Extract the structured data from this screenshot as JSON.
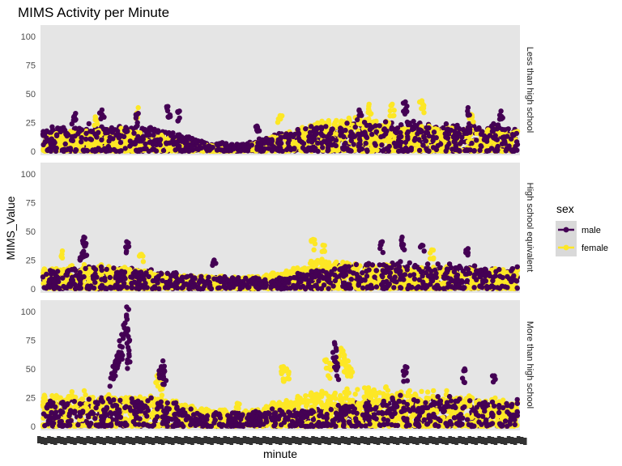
{
  "chart_data": {
    "type": "scatter",
    "title": "MIMS Activity per Minute",
    "xlabel": "minute",
    "ylabel": "MIMS_Value",
    "ylim": [
      0,
      105
    ],
    "yticks": [
      0,
      25,
      50,
      75,
      100
    ],
    "xlim": [
      1,
      1440
    ],
    "grid": false,
    "legend": {
      "title": "sex",
      "position": "right",
      "entries": [
        {
          "name": "male",
          "color": "#440154"
        },
        {
          "name": "female",
          "color": "#FDE725"
        }
      ]
    },
    "facets": [
      {
        "label": "Less than high school",
        "bands": {
          "male": [
            [
              1,
              20
            ],
            [
              120,
              22
            ],
            [
              240,
              21
            ],
            [
              360,
              19
            ],
            [
              480,
              8
            ],
            [
              600,
              6
            ],
            [
              720,
              14
            ],
            [
              840,
              21
            ],
            [
              960,
              24
            ],
            [
              1080,
              23
            ],
            [
              1200,
              24
            ],
            [
              1320,
              22
            ],
            [
              1440,
              22
            ]
          ],
          "female": [
            [
              1,
              14
            ],
            [
              120,
              17
            ],
            [
              240,
              18
            ],
            [
              360,
              13
            ],
            [
              480,
              5
            ],
            [
              600,
              4
            ],
            [
              720,
              13
            ],
            [
              840,
              24
            ],
            [
              960,
              28
            ],
            [
              1080,
              21
            ],
            [
              1200,
              20
            ],
            [
              1320,
              18
            ],
            [
              1440,
              18
            ]
          ]
        },
        "peaks": {
          "male": [
            [
              100,
              33
            ],
            [
              180,
              36
            ],
            [
              290,
              33
            ],
            [
              380,
              39
            ],
            [
              415,
              35
            ],
            [
              650,
              22
            ],
            [
              960,
              36
            ],
            [
              1100,
              43
            ],
            [
              1290,
              38
            ],
            [
              1390,
              35
            ]
          ],
          "female": [
            [
              160,
              30
            ],
            [
              290,
              38
            ],
            [
              720,
              31
            ],
            [
              990,
              41
            ],
            [
              1060,
              41
            ],
            [
              1150,
              44
            ],
            [
              1300,
              32
            ]
          ]
        }
      },
      {
        "label": "High school equivalent",
        "bands": {
          "male": [
            [
              1,
              14
            ],
            [
              120,
              18
            ],
            [
              240,
              17
            ],
            [
              360,
              14
            ],
            [
              480,
              10
            ],
            [
              600,
              9
            ],
            [
              720,
              9
            ],
            [
              840,
              16
            ],
            [
              960,
              22
            ],
            [
              1080,
              22
            ],
            [
              1200,
              20
            ],
            [
              1320,
              18
            ],
            [
              1440,
              18
            ]
          ],
          "female": [
            [
              1,
              16
            ],
            [
              120,
              19
            ],
            [
              240,
              18
            ],
            [
              360,
              12
            ],
            [
              480,
              10
            ],
            [
              600,
              10
            ],
            [
              720,
              13
            ],
            [
              840,
              24
            ],
            [
              960,
              20
            ],
            [
              1080,
              18
            ],
            [
              1200,
              17
            ],
            [
              1320,
              16
            ],
            [
              1440,
              17
            ]
          ]
        },
        "peaks": {
          "male": [
            [
              120,
              31
            ],
            [
              125,
              45
            ],
            [
              130,
              38
            ],
            [
              255,
              41
            ],
            [
              520,
              25
            ],
            [
              1030,
              41
            ],
            [
              1090,
              45
            ],
            [
              1150,
              38
            ],
            [
              1290,
              35
            ]
          ],
          "female": [
            [
              60,
              33
            ],
            [
              300,
              30
            ],
            [
              820,
              43
            ],
            [
              850,
              38
            ],
            [
              1180,
              34
            ]
          ]
        }
      },
      {
        "label": "More than high school",
        "bands": {
          "male": [
            [
              1,
              20
            ],
            [
              120,
              22
            ],
            [
              240,
              22
            ],
            [
              360,
              22
            ],
            [
              480,
              12
            ],
            [
              600,
              11
            ],
            [
              720,
              14
            ],
            [
              840,
              14
            ],
            [
              960,
              20
            ],
            [
              1080,
              25
            ],
            [
              1200,
              24
            ],
            [
              1320,
              22
            ],
            [
              1440,
              22
            ]
          ],
          "female": [
            [
              1,
              25
            ],
            [
              120,
              28
            ],
            [
              240,
              25
            ],
            [
              360,
              25
            ],
            [
              480,
              14
            ],
            [
              600,
              12
            ],
            [
              720,
              20
            ],
            [
              840,
              28
            ],
            [
              960,
              32
            ],
            [
              1080,
              30
            ],
            [
              1200,
              28
            ],
            [
              1320,
              24
            ],
            [
              1440,
              22
            ]
          ]
        },
        "peaks": {
          "male": [
            [
              210,
              46
            ],
            [
              220,
              55
            ],
            [
              225,
              58
            ],
            [
              230,
              63
            ],
            [
              235,
              70
            ],
            [
              240,
              80
            ],
            [
              250,
              90
            ],
            [
              255,
              104
            ],
            [
              258,
              85
            ],
            [
              262,
              63
            ],
            [
              360,
              52
            ],
            [
              365,
              57
            ],
            [
              370,
              48
            ],
            [
              885,
              73
            ],
            [
              890,
              68
            ],
            [
              895,
              52
            ],
            [
              1100,
              52
            ],
            [
              1280,
              50
            ],
            [
              1370,
              44
            ]
          ],
          "female": [
            [
              350,
              45
            ],
            [
              360,
              40
            ],
            [
              590,
              20
            ],
            [
              730,
              52
            ],
            [
              740,
              50
            ],
            [
              860,
              58
            ],
            [
              870,
              55
            ],
            [
              905,
              68
            ],
            [
              915,
              62
            ],
            [
              925,
              57
            ],
            [
              935,
              50
            ]
          ]
        }
      }
    ]
  }
}
